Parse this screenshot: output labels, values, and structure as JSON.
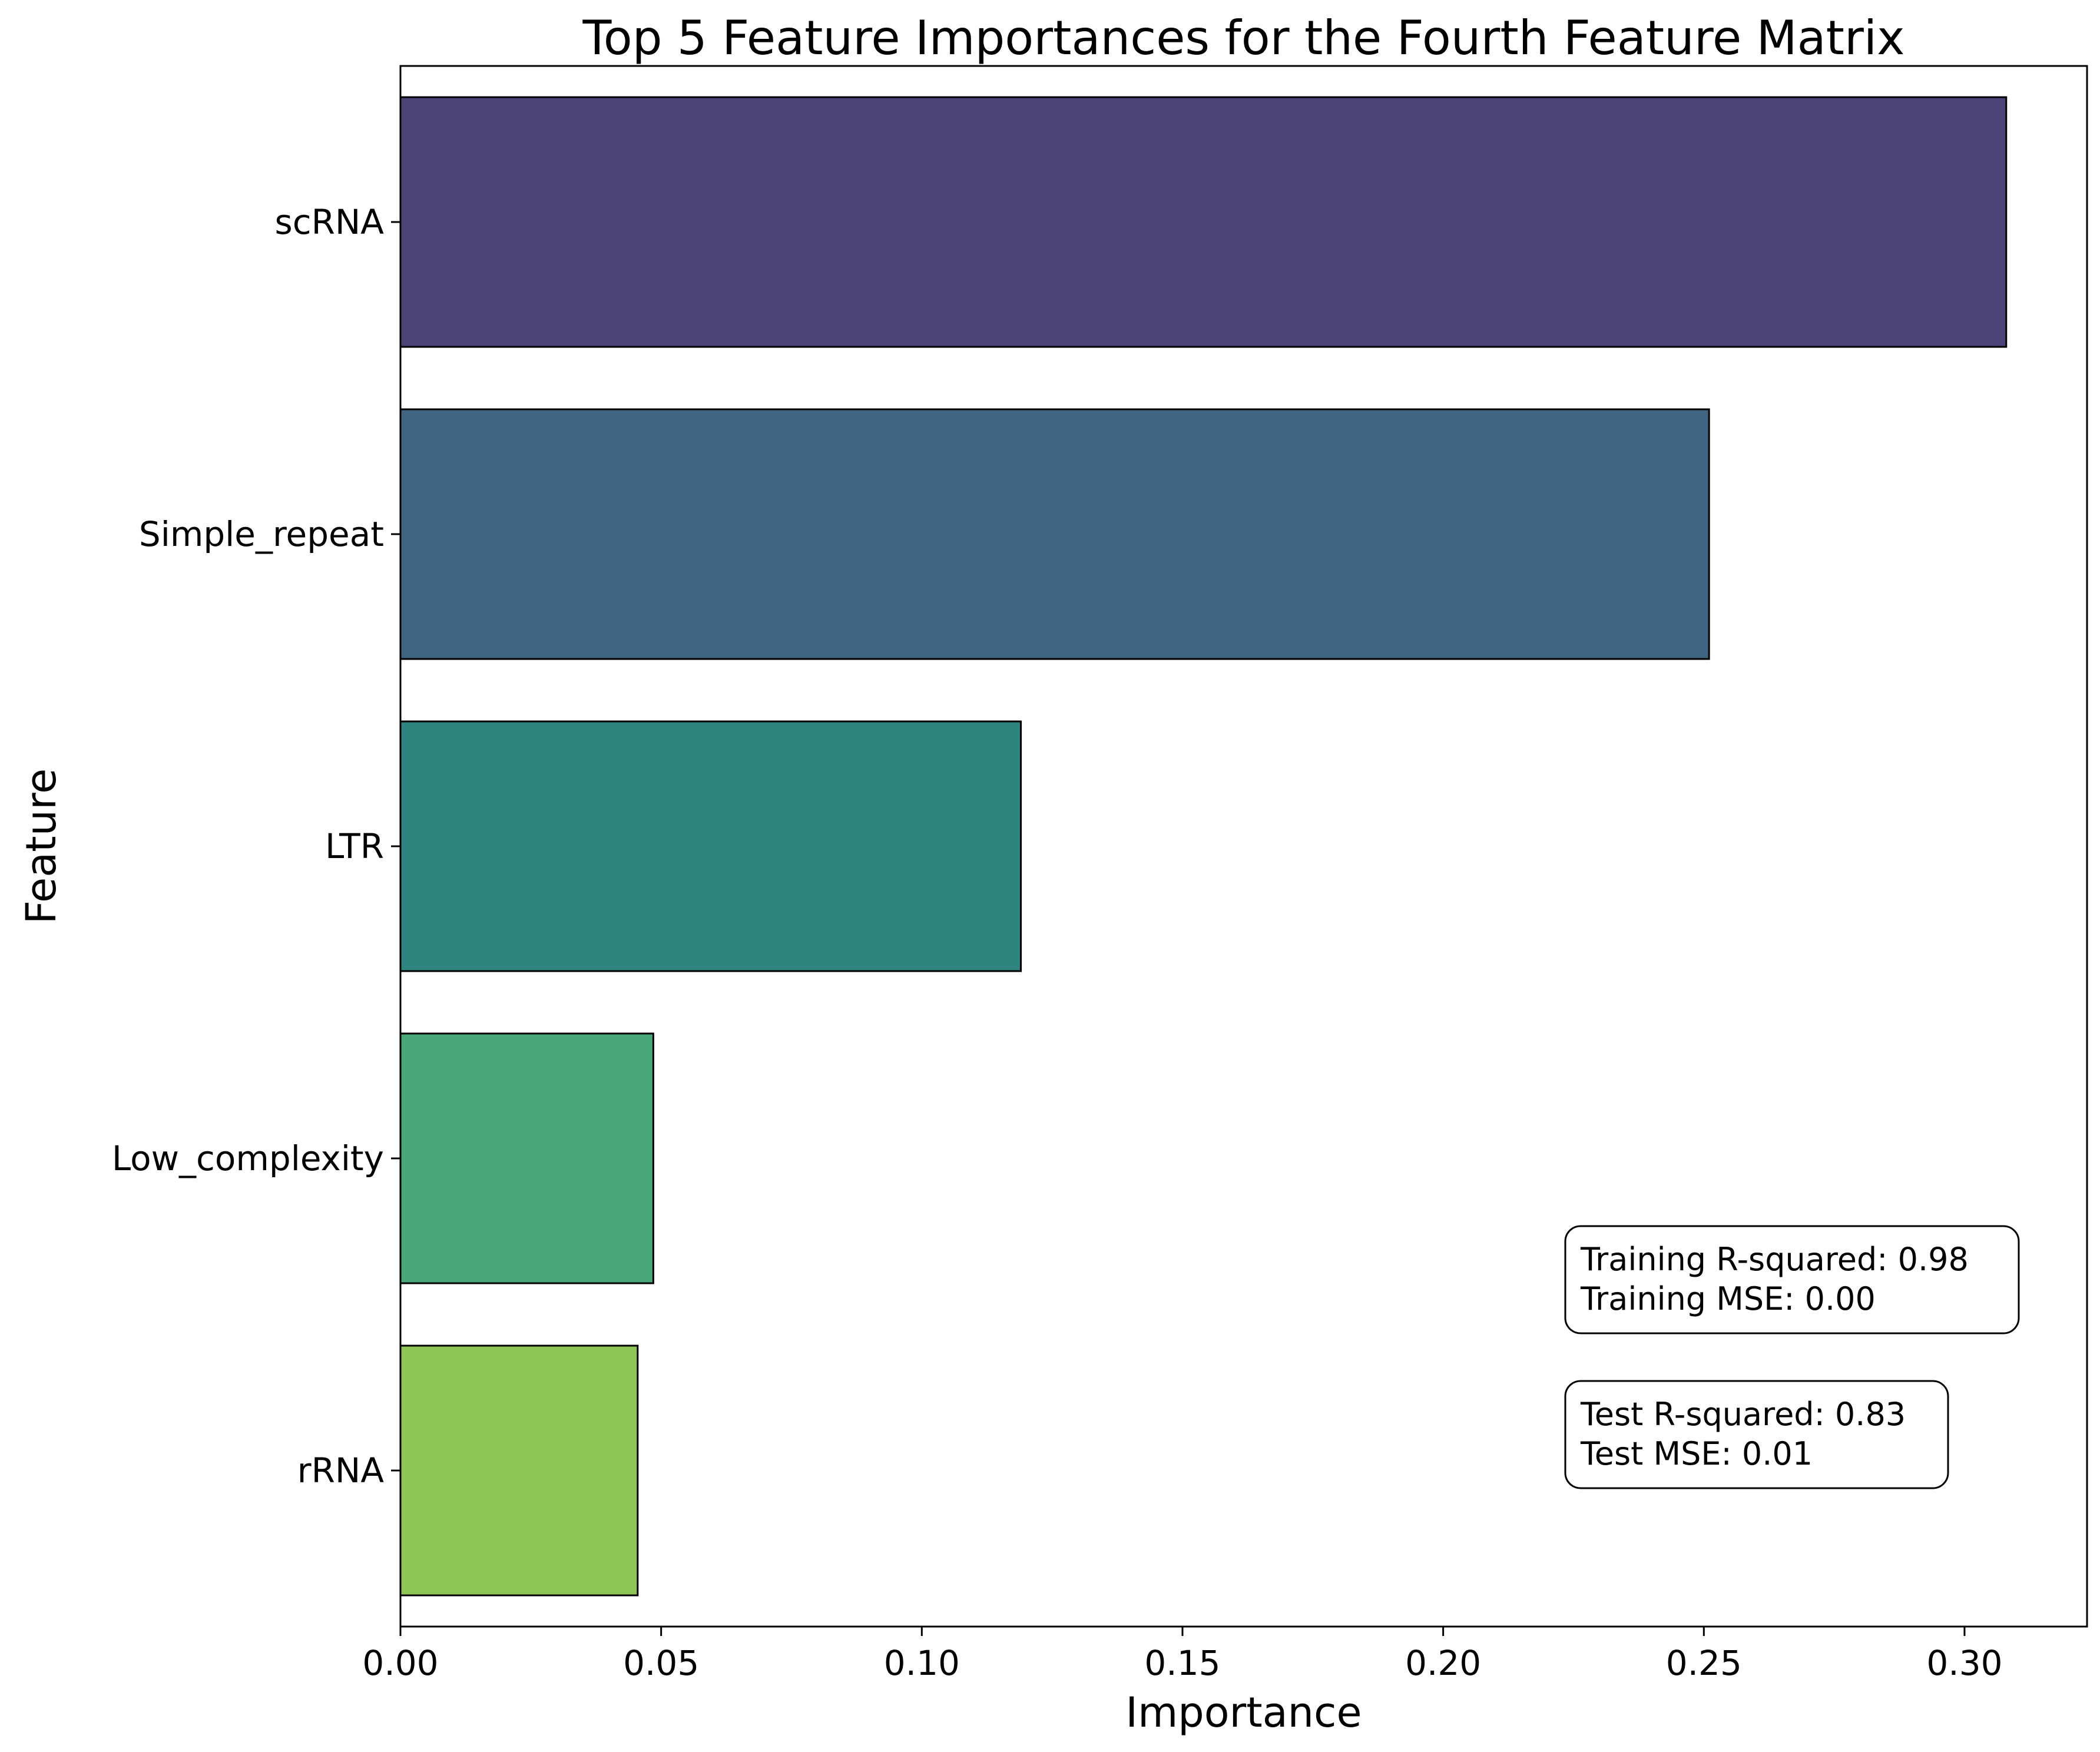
{
  "chart_data": {
    "type": "bar",
    "orientation": "horizontal",
    "title": "Top 5 Feature Importances for the Fourth Feature Matrix",
    "xlabel": "Importance",
    "ylabel": "Feature",
    "categories": [
      "scRNA",
      "Simple_repeat",
      "LTR",
      "Low_complexity",
      "rRNA"
    ],
    "values": [
      0.308,
      0.251,
      0.119,
      0.0485,
      0.0455
    ],
    "colors": [
      "#4b4278",
      "#3f6580",
      "#2e8580",
      "#48a87a",
      "#8fc456"
    ],
    "xlim": [
      0,
      0.3235
    ],
    "xticks": [
      "0.00",
      "0.05",
      "0.10",
      "0.15",
      "0.20",
      "0.25",
      "0.30"
    ],
    "grid": false,
    "annotations": [
      {
        "lines": [
          "Training R-squared: 0.98",
          "Training MSE: 0.00"
        ]
      },
      {
        "lines": [
          "Test R-squared: 0.83",
          "Test MSE: 0.01"
        ]
      }
    ]
  }
}
